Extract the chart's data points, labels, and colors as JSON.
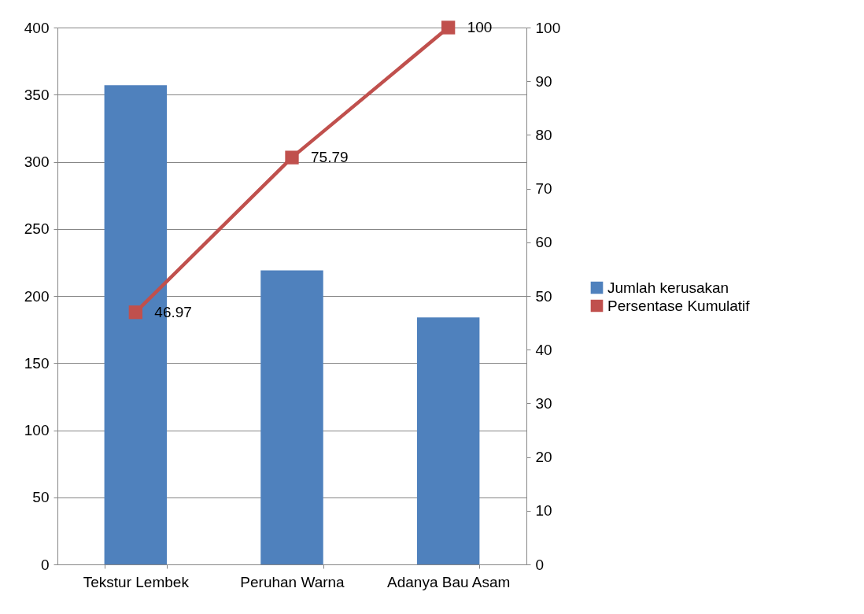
{
  "chart_data": {
    "type": "bar",
    "categories": [
      "Tekstur Lembek",
      "Peruhan Warna",
      "Adanya Bau Asam"
    ],
    "series": [
      {
        "name": "Jumlah kerusakan",
        "color": "#4f81bd",
        "values": [
          357,
          219,
          184
        ]
      },
      {
        "name": "Persentase Kumulatif",
        "type": "line",
        "axis": "y2",
        "color": "#c0504d",
        "values": [
          46.97,
          75.79,
          100
        ],
        "value_labels": [
          "46.97",
          "75.79",
          "100"
        ]
      }
    ],
    "ylim": [
      0,
      400
    ],
    "yticks": [
      0,
      50,
      100,
      150,
      200,
      250,
      300,
      350,
      400
    ],
    "y2lim": [
      0,
      100
    ],
    "y2ticks": [
      0,
      10,
      20,
      30,
      40,
      50,
      60,
      70,
      80,
      90,
      100
    ],
    "grid": "y",
    "legend": "right",
    "marker": "square"
  }
}
